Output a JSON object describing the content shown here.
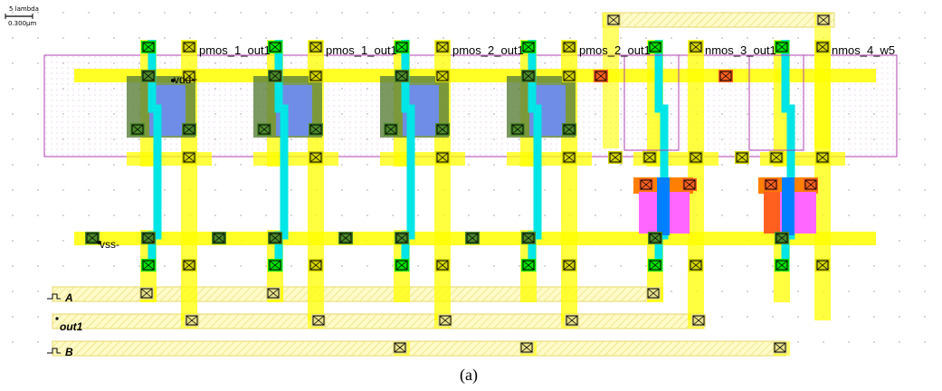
{
  "scale_bar": {
    "line1": "5 lambda",
    "line2": "0.300µm"
  },
  "cell_labels": [
    "pmos_1_out1",
    "pmos_1_out1",
    "pmos_2_out1",
    "pmos_2_out1",
    "nmos_3_out1",
    "nmos_4_w5"
  ],
  "power_nets": {
    "vdd": "vdd+",
    "vss": "vss-"
  },
  "io_pins": [
    {
      "label": "A",
      "icon": "clock-pin-icon"
    },
    {
      "label": "out1",
      "icon": "output-pin-icon"
    },
    {
      "label": "B",
      "icon": "clock-pin-icon"
    }
  ],
  "caption": "(a)",
  "colors": {
    "metal1": "#ffff00",
    "poly": "#ff00ff",
    "diffusion": "#00ffff",
    "contact": "#00e000",
    "via": "#ff8000",
    "nwell": "#b040b0",
    "pmos_diff": "#6d8bff",
    "nmos_diff": "#ff66ff"
  }
}
